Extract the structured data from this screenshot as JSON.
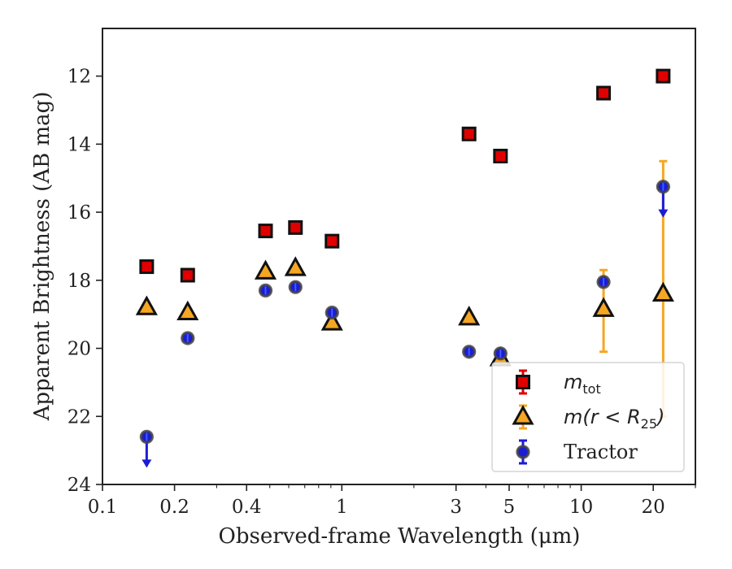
{
  "chart_data": {
    "type": "scatter",
    "xlabel": "Observed-frame Wavelength (μm)",
    "ylabel": "Apparent Brightness (AB mag)",
    "xscale": "log",
    "xlim": [
      0.1,
      30
    ],
    "ylim": [
      24,
      10.6
    ],
    "y_inverted": true,
    "x_ticks": [
      0.1,
      0.2,
      0.4,
      1,
      3,
      5,
      10,
      20
    ],
    "x_tick_labels": [
      "0.1",
      "0.2",
      "0.4",
      "1",
      "3",
      "5",
      "10",
      "20"
    ],
    "y_ticks": [
      12,
      14,
      16,
      18,
      20,
      22,
      24
    ],
    "y_tick_labels": [
      "12",
      "14",
      "16",
      "18",
      "20",
      "22",
      "24"
    ],
    "legend_position": "lower-right",
    "grid": false,
    "series": [
      {
        "name": "m_tot",
        "legend": {
          "main": "m",
          "sub": "tot",
          "suffix": ""
        },
        "marker": "square",
        "color": "#e00000",
        "edge": "#111111",
        "points": [
          {
            "x": 0.153,
            "y": 17.6
          },
          {
            "x": 0.227,
            "y": 17.85
          },
          {
            "x": 0.48,
            "y": 16.55
          },
          {
            "x": 0.64,
            "y": 16.45
          },
          {
            "x": 0.91,
            "y": 16.85
          },
          {
            "x": 3.4,
            "y": 13.7
          },
          {
            "x": 4.6,
            "y": 14.35
          },
          {
            "x": 12.4,
            "y": 12.5
          },
          {
            "x": 22.0,
            "y": 12.0
          }
        ]
      },
      {
        "name": "m(r<R25)",
        "legend": {
          "main": "m(r < R",
          "sub": "25",
          "suffix": ")"
        },
        "marker": "triangle",
        "color": "#f5a623",
        "edge": "#111111",
        "points": [
          {
            "x": 0.153,
            "y": 18.8
          },
          {
            "x": 0.227,
            "y": 18.95
          },
          {
            "x": 0.48,
            "y": 17.75
          },
          {
            "x": 0.64,
            "y": 17.65
          },
          {
            "x": 0.91,
            "y": 19.25
          },
          {
            "x": 3.4,
            "y": 19.1
          },
          {
            "x": 4.6,
            "y": 20.3
          },
          {
            "x": 12.4,
            "y": 18.85,
            "err": [
              17.7,
              20.1
            ]
          },
          {
            "x": 22.0,
            "y": 18.4,
            "err": [
              14.5,
              22.0
            ]
          }
        ]
      },
      {
        "name": "Tractor",
        "legend": {
          "main": "Tractor",
          "sub": "",
          "suffix": ""
        },
        "marker": "circle",
        "color": "#1c1cd4",
        "edge": "#444444",
        "points": [
          {
            "x": 0.153,
            "y": 22.6,
            "upper_limit": true
          },
          {
            "x": 0.227,
            "y": 19.7
          },
          {
            "x": 0.48,
            "y": 18.3
          },
          {
            "x": 0.64,
            "y": 18.2
          },
          {
            "x": 0.91,
            "y": 18.95
          },
          {
            "x": 3.4,
            "y": 20.1
          },
          {
            "x": 4.6,
            "y": 20.15
          },
          {
            "x": 12.4,
            "y": 18.05
          },
          {
            "x": 22.0,
            "y": 15.25,
            "upper_limit": true
          }
        ]
      }
    ]
  }
}
